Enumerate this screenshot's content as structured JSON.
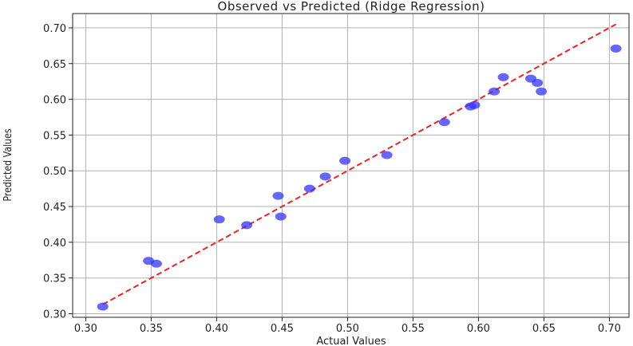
{
  "chart_data": {
    "type": "scatter",
    "title": "Observed vs Predicted (Ridge Regression)",
    "xlabel": "Actual Values",
    "ylabel": "Predicted Values",
    "xlim": [
      0.29,
      0.715
    ],
    "ylim": [
      0.295,
      0.72
    ],
    "x_ticks": [
      "0.30",
      "0.35",
      "0.40",
      "0.45",
      "0.50",
      "0.55",
      "0.60",
      "0.65",
      "0.70"
    ],
    "y_ticks": [
      "0.30",
      "0.35",
      "0.40",
      "0.45",
      "0.50",
      "0.55",
      "0.60",
      "0.65",
      "0.70"
    ],
    "grid": true,
    "colors": {
      "points": "#3333ff",
      "line": "#ee2222",
      "grid": "#b0b0b0"
    },
    "series": [
      {
        "type": "scatter",
        "points": [
          {
            "x": 0.313,
            "y": 0.31
          },
          {
            "x": 0.348,
            "y": 0.374
          },
          {
            "x": 0.354,
            "y": 0.37
          },
          {
            "x": 0.402,
            "y": 0.432
          },
          {
            "x": 0.423,
            "y": 0.424
          },
          {
            "x": 0.447,
            "y": 0.465
          },
          {
            "x": 0.449,
            "y": 0.436
          },
          {
            "x": 0.471,
            "y": 0.475
          },
          {
            "x": 0.483,
            "y": 0.492
          },
          {
            "x": 0.498,
            "y": 0.514
          },
          {
            "x": 0.53,
            "y": 0.522
          },
          {
            "x": 0.574,
            "y": 0.568
          },
          {
            "x": 0.594,
            "y": 0.59
          },
          {
            "x": 0.597,
            "y": 0.592
          },
          {
            "x": 0.612,
            "y": 0.611
          },
          {
            "x": 0.619,
            "y": 0.631
          },
          {
            "x": 0.64,
            "y": 0.629
          },
          {
            "x": 0.645,
            "y": 0.623
          },
          {
            "x": 0.648,
            "y": 0.611
          },
          {
            "x": 0.705,
            "y": 0.671
          }
        ]
      },
      {
        "type": "line",
        "style": "dashed",
        "points": [
          {
            "x": 0.313,
            "y": 0.313
          },
          {
            "x": 0.705,
            "y": 0.705
          }
        ]
      }
    ]
  }
}
